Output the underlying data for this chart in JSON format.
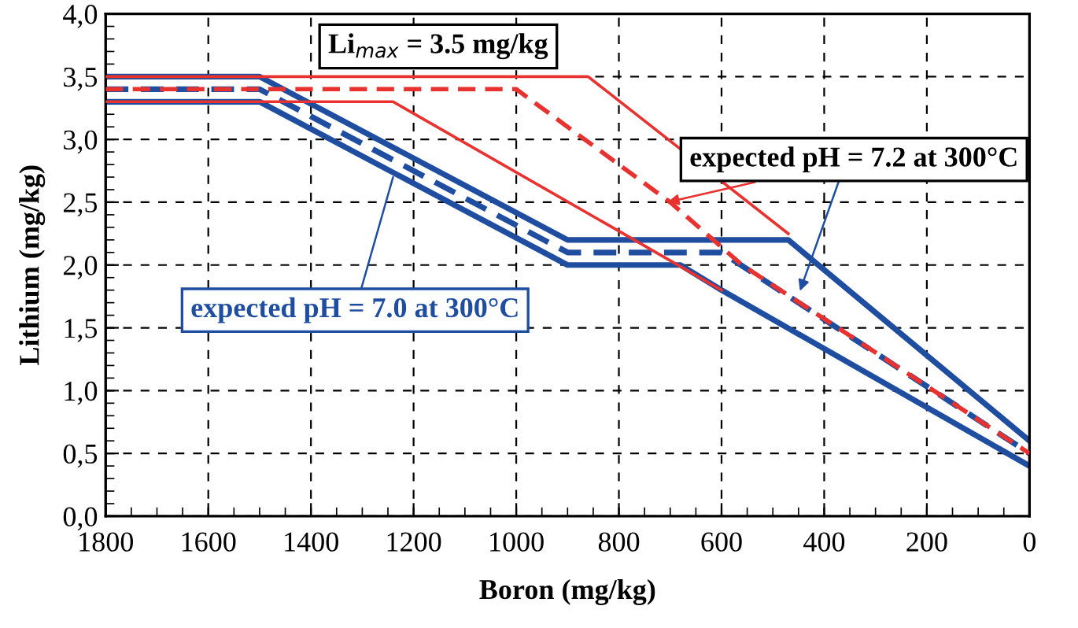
{
  "chart_data": {
    "type": "line",
    "xlabel": "Boron (mg/kg)",
    "ylabel": "Lithium (mg/kg)",
    "xlim": [
      1800,
      0
    ],
    "ylim": [
      0,
      4.0
    ],
    "xticks": [
      1800,
      1600,
      1400,
      1200,
      1000,
      800,
      600,
      400,
      200,
      0
    ],
    "yticks": [
      {
        "value": 0,
        "label": "0,0"
      },
      {
        "value": 0.5,
        "label": "0,5"
      },
      {
        "value": 1.0,
        "label": "1,0"
      },
      {
        "value": 1.5,
        "label": "1,5"
      },
      {
        "value": 2.0,
        "label": "2,0"
      },
      {
        "value": 2.5,
        "label": "2,5"
      },
      {
        "value": 3.0,
        "label": "3,0"
      },
      {
        "value": 3.5,
        "label": "3,5"
      },
      {
        "value": 4.0,
        "label": "4,0"
      }
    ],
    "grid": true,
    "marker": "none",
    "series": [
      {
        "color": "#e8322f",
        "line_style": "solid",
        "x": [
          1800,
          860,
          470
        ],
        "values": [
          3.5,
          3.5,
          2.25
        ]
      },
      {
        "color": "#e8322f",
        "line_style": "solid",
        "x": [
          1800,
          1240,
          800,
          600
        ],
        "values": [
          3.3,
          3.3,
          2.27,
          1.8
        ]
      },
      {
        "color": "#e8322f",
        "line_style": "dashed",
        "x": [
          1800,
          1000,
          700,
          560,
          0
        ],
        "values": [
          3.4,
          3.4,
          2.5,
          2.0,
          0.5
        ]
      },
      {
        "color": "#1f4ea1",
        "line_style": "solid",
        "x": [
          1800,
          1500,
          900,
          470,
          0
        ],
        "values": [
          3.5,
          3.5,
          2.2,
          2.2,
          0.6
        ]
      },
      {
        "color": "#1f4ea1",
        "line_style": "solid",
        "x": [
          1800,
          1500,
          900,
          680,
          600,
          0
        ],
        "values": [
          3.3,
          3.3,
          2.0,
          2.0,
          1.8,
          0.4
        ]
      },
      {
        "color": "#1f4ea1",
        "line_style": "dashed",
        "x": [
          1800,
          1500,
          900,
          600,
          0
        ],
        "values": [
          3.4,
          3.4,
          2.1,
          2.1,
          0.5
        ]
      }
    ],
    "annotations": [
      "Li$_{max}$ = 3.5 mg/kg",
      {
        "text": "expected pH = 7.2 at 300°C",
        "x": 705,
        "y": 2.5
      },
      {
        "text": "expected pH = 7.0 at 300°C",
        "x": 1240,
        "y": 2.7
      }
    ]
  }
}
